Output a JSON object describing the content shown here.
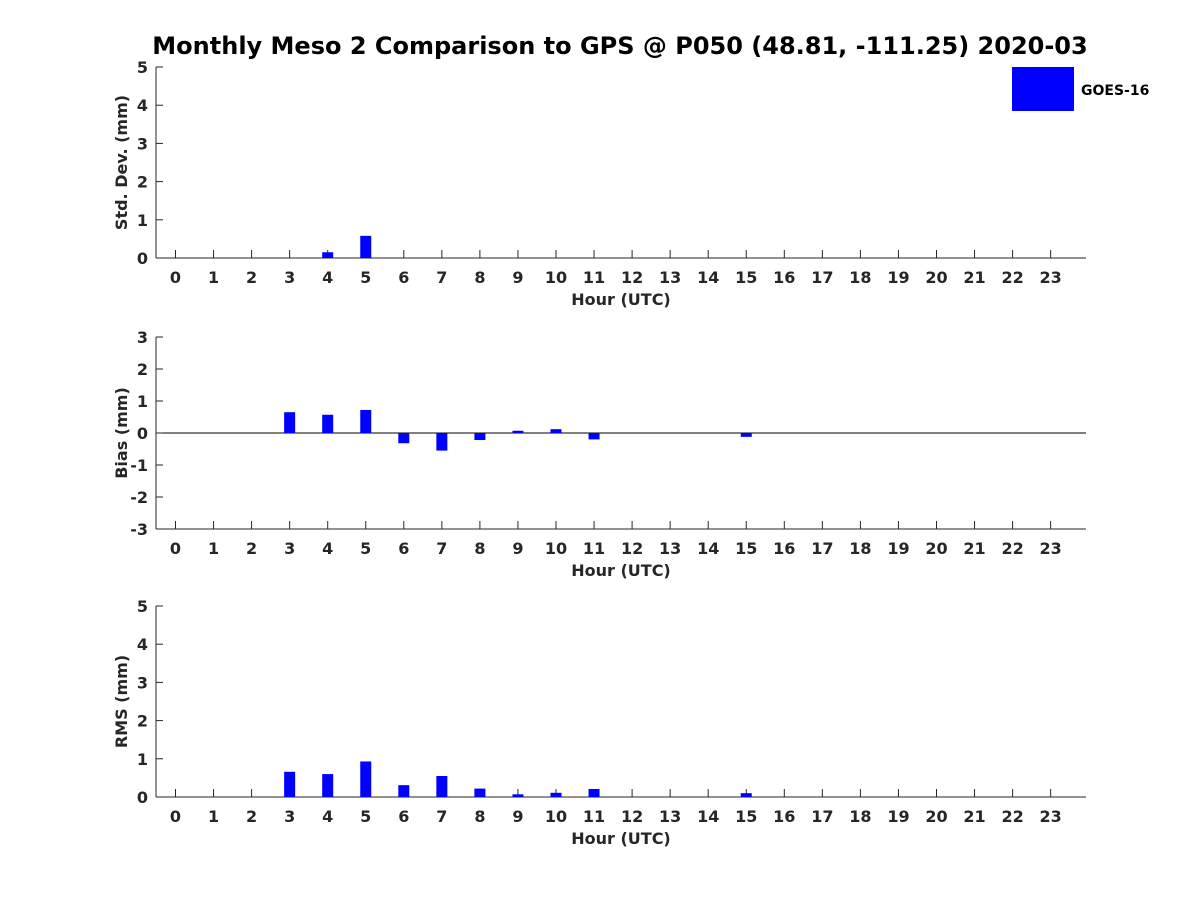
{
  "title": "Monthly Meso 2 Comparison to GPS @ P050 (48.81, -111.25) 2020-03",
  "legend": {
    "label": "GOES-16",
    "color": "#0000ff",
    "placement": "top-right"
  },
  "chart_data": [
    {
      "type": "bar",
      "ylabel": "Std. Dev. (mm)",
      "xlabel": "Hour (UTC)",
      "ylim": [
        0,
        5
      ],
      "yticks": [
        0,
        1,
        2,
        3,
        4,
        5
      ],
      "categories": [
        "0",
        "1",
        "2",
        "3",
        "4",
        "5",
        "6",
        "7",
        "8",
        "9",
        "10",
        "11",
        "12",
        "13",
        "14",
        "15",
        "16",
        "17",
        "18",
        "19",
        "20",
        "21",
        "22",
        "23"
      ],
      "series": [
        {
          "values": [
            0,
            0,
            0,
            0,
            0.15,
            0.58,
            0,
            0,
            0,
            0,
            0,
            0,
            0,
            0,
            0,
            0,
            0,
            0,
            0,
            0,
            0,
            0,
            0,
            0
          ]
        }
      ],
      "grid": false
    },
    {
      "type": "bar",
      "ylabel": "Bias (mm)",
      "xlabel": "Hour (UTC)",
      "ylim": [
        -3,
        3
      ],
      "yticks": [
        -3,
        -2,
        -1,
        0,
        1,
        2,
        3
      ],
      "categories": [
        "0",
        "1",
        "2",
        "3",
        "4",
        "5",
        "6",
        "7",
        "8",
        "9",
        "10",
        "11",
        "12",
        "13",
        "14",
        "15",
        "16",
        "17",
        "18",
        "19",
        "20",
        "21",
        "22",
        "23"
      ],
      "series": [
        {
          "values": [
            0,
            0,
            0,
            0.65,
            0.57,
            0.72,
            -0.32,
            -0.55,
            -0.22,
            0.07,
            0.12,
            -0.2,
            0,
            0,
            0,
            -0.12,
            0,
            0,
            0,
            0,
            0,
            0,
            0,
            0
          ]
        }
      ],
      "grid": false
    },
    {
      "type": "bar",
      "ylabel": "RMS (mm)",
      "xlabel": "Hour (UTC)",
      "ylim": [
        0,
        5
      ],
      "yticks": [
        0,
        1,
        2,
        3,
        4,
        5
      ],
      "categories": [
        "0",
        "1",
        "2",
        "3",
        "4",
        "5",
        "6",
        "7",
        "8",
        "9",
        "10",
        "11",
        "12",
        "13",
        "14",
        "15",
        "16",
        "17",
        "18",
        "19",
        "20",
        "21",
        "22",
        "23"
      ],
      "series": [
        {
          "values": [
            0,
            0,
            0,
            0.66,
            0.6,
            0.93,
            0.31,
            0.55,
            0.22,
            0.07,
            0.11,
            0.21,
            0,
            0,
            0,
            0.1,
            0,
            0,
            0,
            0,
            0,
            0,
            0,
            0
          ]
        }
      ],
      "grid": false
    }
  ]
}
